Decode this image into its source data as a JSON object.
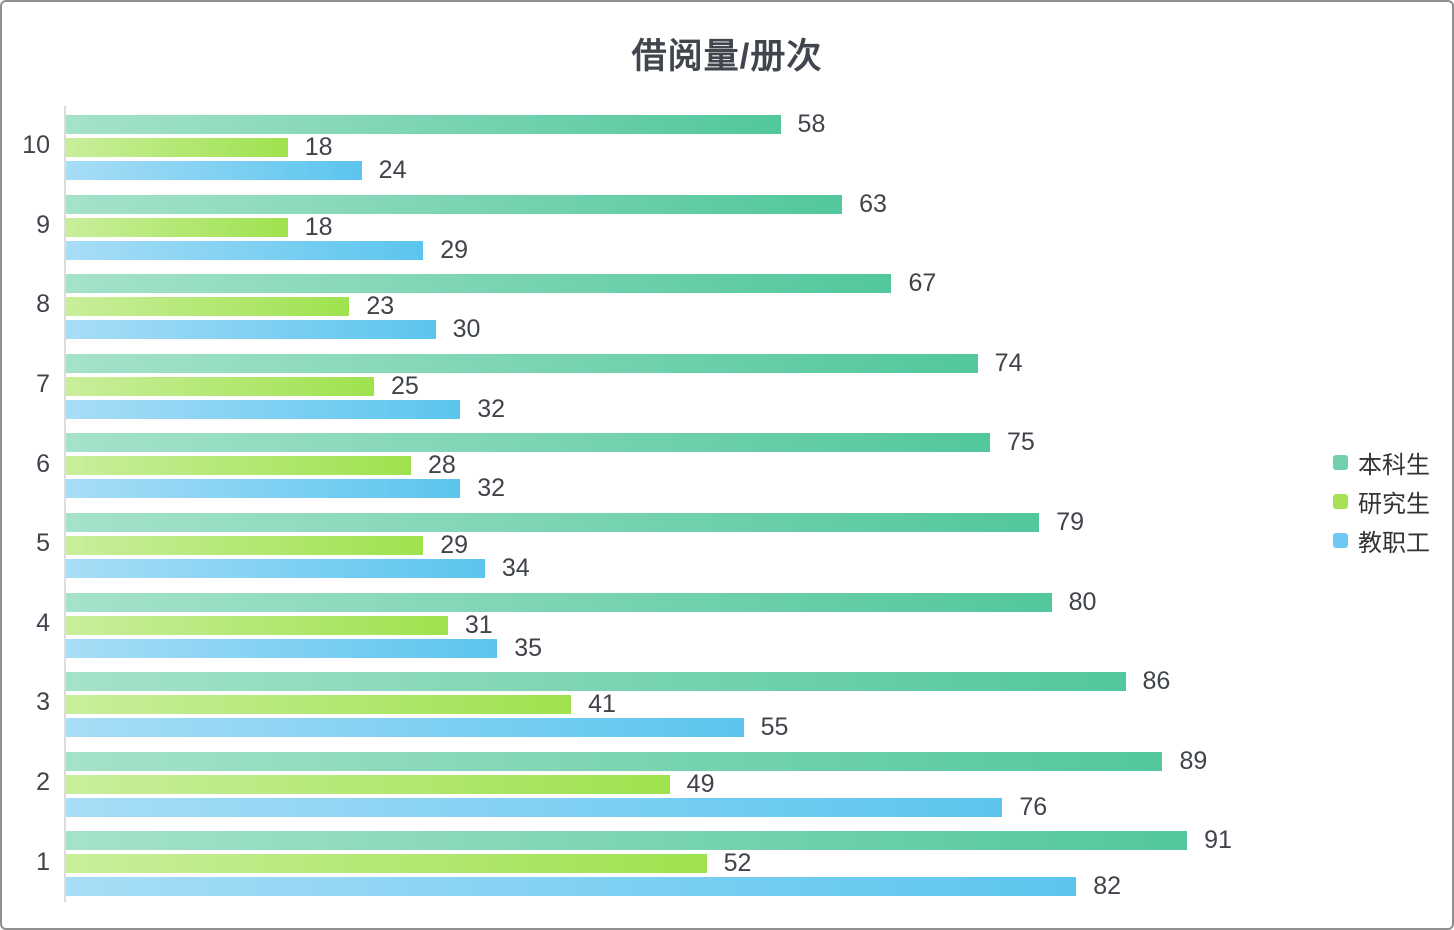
{
  "title": "借阅量/册次",
  "chart_data": {
    "type": "bar",
    "orientation": "horizontal",
    "title": "借阅量/册次",
    "xlabel": "",
    "ylabel": "",
    "xlim": [
      0,
      100
    ],
    "grid": false,
    "value_labels": true,
    "legend_position": "right",
    "categories": [
      "10",
      "9",
      "8",
      "7",
      "6",
      "5",
      "4",
      "3",
      "2",
      "1"
    ],
    "series": [
      {
        "name": "本科生",
        "values": [
          58,
          63,
          67,
          74,
          75,
          79,
          80,
          86,
          89,
          91
        ],
        "gradient_start": "#a5e2ca",
        "gradient_end": "#52c79c",
        "legend_color": "#6fd0ab"
      },
      {
        "name": "研究生",
        "values": [
          18,
          18,
          23,
          25,
          28,
          29,
          31,
          41,
          49,
          52
        ],
        "gradient_start": "#c9ee9b",
        "gradient_end": "#9fe24e",
        "legend_color": "#a6e153"
      },
      {
        "name": "教职工",
        "values": [
          24,
          29,
          30,
          32,
          32,
          34,
          35,
          55,
          76,
          82
        ],
        "gradient_start": "#a8ddf6",
        "gradient_end": "#5bc5ee",
        "legend_color": "#6ec9f2"
      }
    ],
    "colors": {
      "axis_line": "#dcdcdc",
      "label_text": "#3f434a",
      "title_text": "#41454d"
    }
  }
}
